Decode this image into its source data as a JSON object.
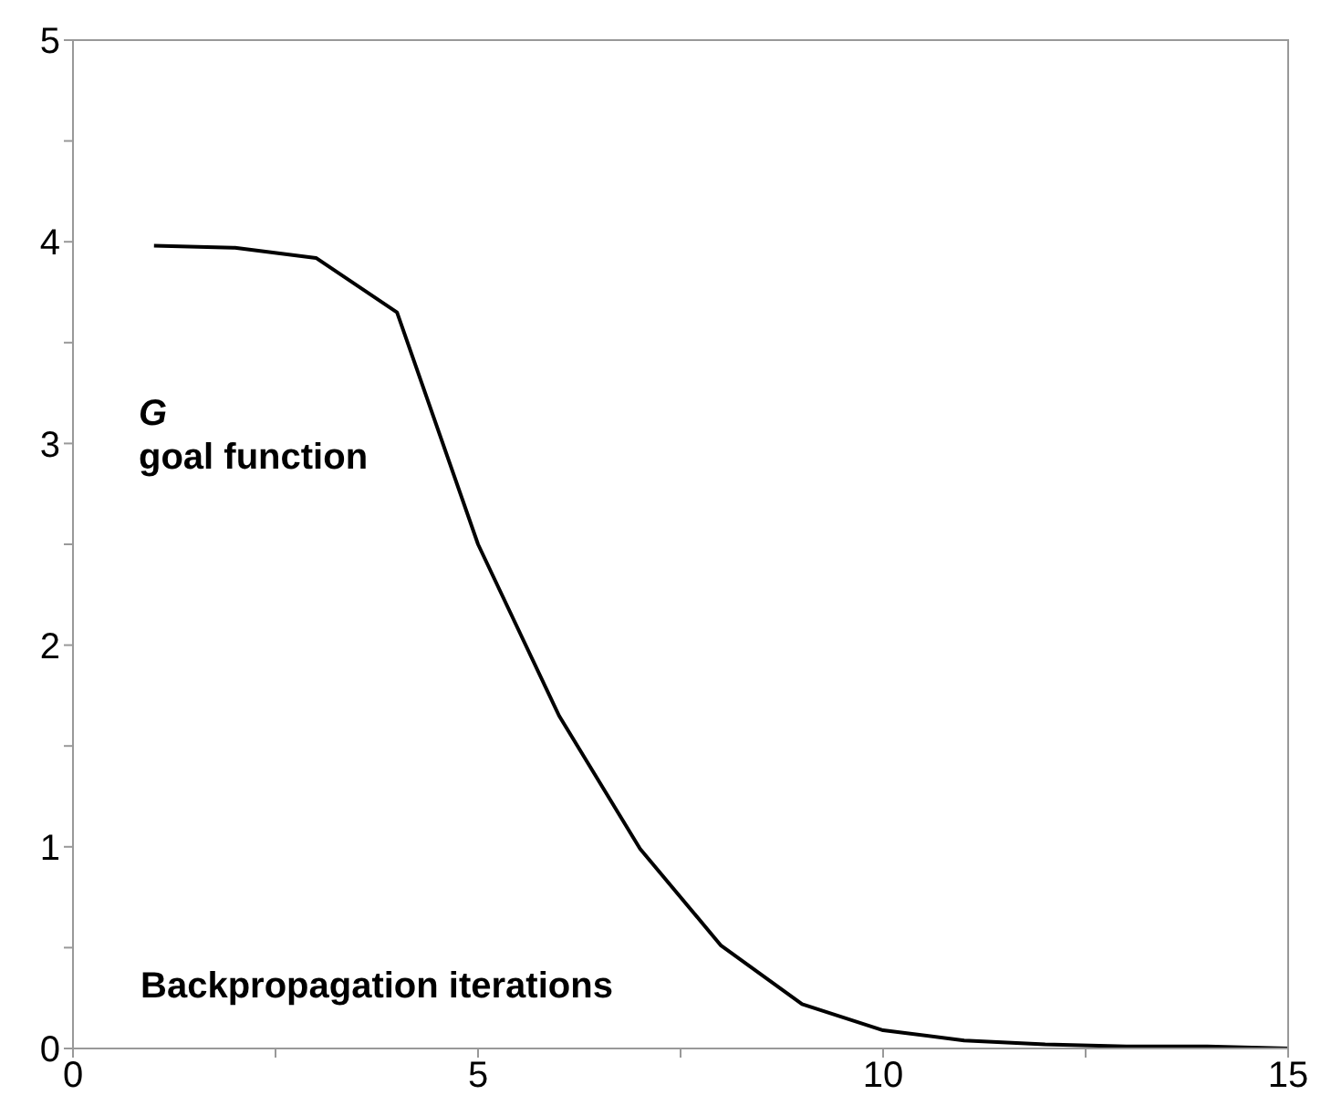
{
  "chart_data": {
    "type": "line",
    "xlabel": "Backpropagation iterations",
    "ylabel": "G goal function",
    "x": [
      1,
      2,
      3,
      4,
      5,
      6,
      7,
      8,
      9,
      10,
      11,
      12,
      13,
      14,
      15
    ],
    "series": [
      {
        "color": "#000000",
        "values": [
          3.98,
          3.97,
          3.92,
          3.65,
          2.5,
          1.65,
          0.99,
          0.51,
          0.22,
          0.09,
          0.04,
          0.02,
          0.01,
          0.01,
          0.0
        ]
      }
    ],
    "xlim": [
      0,
      15
    ],
    "xticks": [
      0,
      {
        "value": 2.5,
        "label": null
      },
      5,
      {
        "value": 7.5,
        "label": null
      },
      10,
      {
        "value": 12.5,
        "label": null
      },
      15
    ],
    "ylim": [
      0,
      5
    ],
    "yticks": [
      0,
      {
        "value": 0.5,
        "label": null
      },
      1,
      {
        "value": 1.5,
        "label": null
      },
      2,
      {
        "value": 2.5,
        "label": null
      },
      3,
      {
        "value": 3.5,
        "label": null
      },
      4,
      {
        "value": 4.5,
        "label": null
      },
      5
    ],
    "grid": false,
    "marker": "none",
    "line_style": "solid"
  }
}
